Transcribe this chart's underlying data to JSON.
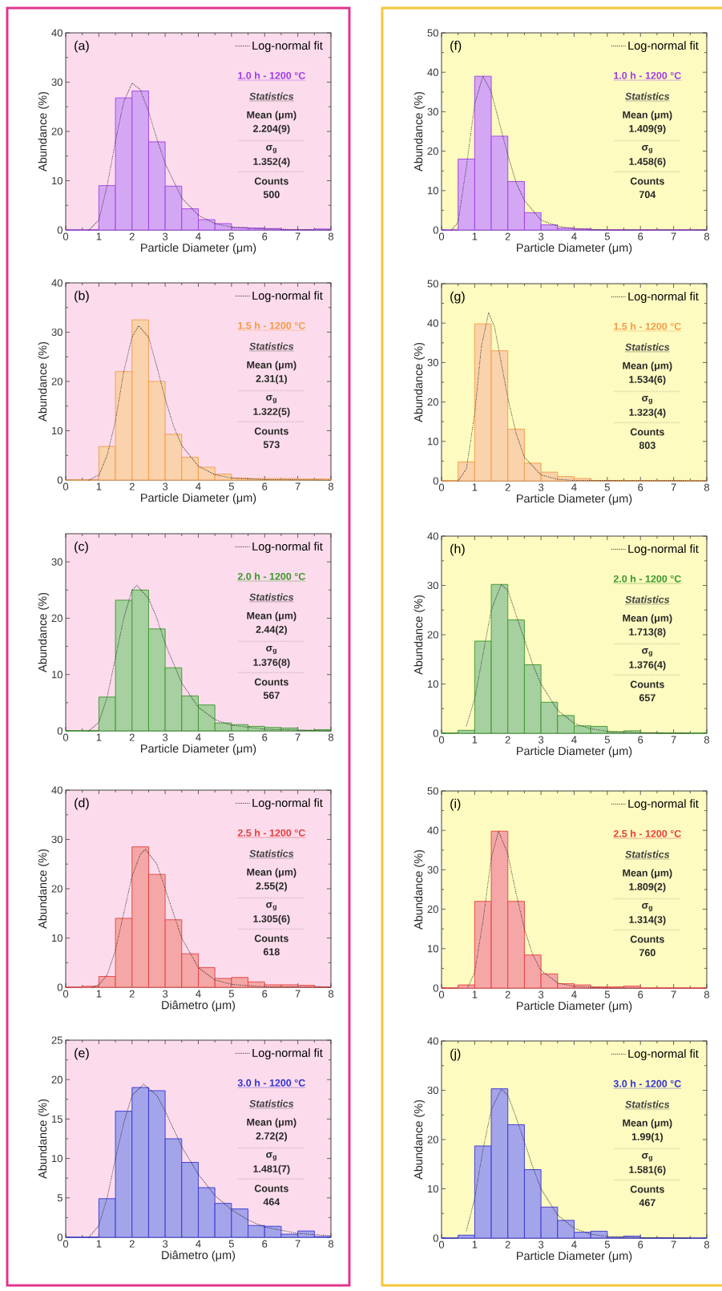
{
  "chart_data": [
    {
      "type": "histogram",
      "color": "#a03ce6",
      "xlabel": "Particle Diameter (μm)",
      "ylabel": "Abundance (%)",
      "xlim": [
        0,
        8
      ],
      "xticks": [
        0,
        1,
        2,
        3,
        4,
        5,
        6,
        7,
        8
      ],
      "ylim": [
        0,
        40
      ],
      "yticks": [
        0,
        10,
        20,
        30,
        40
      ],
      "legend": "top right",
      "bins": [
        0,
        0.5,
        1,
        1.5,
        2,
        2.5,
        3,
        3.5,
        4,
        4.5,
        5,
        5.5,
        6,
        6.5,
        7,
        7.5,
        8
      ],
      "values": [
        0,
        0,
        9,
        26.8,
        28.2,
        17.9,
        8.9,
        4.3,
        2.1,
        1.3,
        0.5,
        0.4,
        0.3,
        0,
        0,
        0.2
      ],
      "series": [
        {
          "name": "Log-normal fit",
          "type": "line",
          "color": "#222222",
          "line_style": "dotted",
          "x": [
            0.7,
            1.0,
            1.25,
            1.5,
            1.75,
            2.0,
            2.25,
            2.5,
            2.75,
            3.0,
            3.5,
            4.0,
            4.5,
            5.0,
            6.0,
            8.0
          ],
          "values": [
            0,
            2,
            9,
            18,
            26,
            29.8,
            28.5,
            24,
            18.5,
            13.5,
            6.5,
            3,
            1.3,
            0.6,
            0.2,
            0
          ]
        }
      ],
      "annotations": [
        "(a)",
        "1.0 h - 1200 °C",
        "Statistics",
        "Mean (μm)",
        "2.204(9)",
        "σ$_{g}$",
        "1.352(4)",
        "Counts",
        "500"
      ]
    },
    {
      "type": "histogram",
      "color": "#f59a45",
      "xlabel": "Particle Diameter (μm)",
      "ylabel": "Abundance (%)",
      "xlim": [
        0,
        8
      ],
      "xticks": [
        0,
        1,
        2,
        3,
        4,
        5,
        6,
        7,
        8
      ],
      "ylim": [
        0,
        40
      ],
      "yticks": [
        0,
        10,
        20,
        30,
        40
      ],
      "legend": "top right",
      "bins": [
        0,
        0.5,
        1,
        1.5,
        2,
        2.5,
        3,
        3.5,
        4,
        4.5,
        5,
        5.5,
        6,
        6.5,
        7,
        7.5,
        8
      ],
      "values": [
        0,
        0,
        6.8,
        22,
        32.5,
        20,
        9.3,
        4.6,
        2.6,
        1.2,
        0.4,
        0.3,
        0.3,
        0.3,
        0.2,
        0.2
      ],
      "series": [
        {
          "name": "Log-normal fit",
          "type": "line",
          "color": "#222222",
          "line_style": "dotted",
          "x": [
            0.7,
            1.0,
            1.25,
            1.5,
            1.75,
            2.0,
            2.2,
            2.5,
            2.75,
            3.0,
            3.25,
            3.5,
            4.0,
            4.5,
            5.0,
            6.0,
            8.0
          ],
          "values": [
            0,
            1,
            5,
            12,
            22,
            29,
            31.3,
            29,
            23,
            16.5,
            11,
            7,
            2.8,
            1.1,
            0.4,
            0.1,
            0
          ]
        }
      ],
      "annotations": [
        "(b)",
        "1.5 h - 1200 °C",
        "Statistics",
        "Mean (μm)",
        "2.31(1)",
        "σ$_{g}$",
        "1.322(5)",
        "Counts",
        "573"
      ]
    },
    {
      "type": "histogram",
      "color": "#3a962a",
      "xlabel": "Particle Diameter (μm)",
      "ylabel": "Abundance (%)",
      "xlim": [
        0,
        8
      ],
      "xticks": [
        0,
        1,
        2,
        3,
        4,
        5,
        6,
        7,
        8
      ],
      "ylim": [
        0,
        35
      ],
      "yticks": [
        0,
        10,
        20,
        30
      ],
      "legend": "top right",
      "bins": [
        0,
        0.5,
        1,
        1.5,
        2,
        2.5,
        3,
        3.5,
        4,
        4.5,
        5,
        5.5,
        6,
        6.5,
        7,
        7.5,
        8
      ],
      "values": [
        0,
        0,
        6,
        23.2,
        25,
        18.1,
        11.2,
        6.2,
        4.6,
        1.4,
        1.1,
        0.8,
        0.6,
        0.5,
        0.1,
        0.2
      ],
      "series": [
        {
          "name": "Log-normal fit",
          "type": "line",
          "color": "#222222",
          "line_style": "dotted",
          "x": [
            0.7,
            1.0,
            1.25,
            1.5,
            1.75,
            2.0,
            2.15,
            2.5,
            2.75,
            3.0,
            3.5,
            4.0,
            4.5,
            5.0,
            6.0,
            8.0
          ],
          "values": [
            0,
            1.5,
            6,
            13,
            20,
            25,
            25.8,
            23.5,
            20,
            15.5,
            8.5,
            4.2,
            2,
            1,
            0.3,
            0
          ]
        }
      ],
      "annotations": [
        "(c)",
        "2.0 h - 1200 °C",
        "Statistics",
        "Mean (μm)",
        "2.44(2)",
        "σ$_{g}$",
        "1.376(8)",
        "Counts",
        "567"
      ]
    },
    {
      "type": "histogram",
      "color": "#e83c3c",
      "xlabel": "Diâmetro (μm)",
      "ylabel": "Abundance (%)",
      "xlim": [
        0,
        8
      ],
      "xticks": [
        0,
        1,
        2,
        3,
        4,
        5,
        6,
        7,
        8
      ],
      "ylim": [
        0,
        40
      ],
      "yticks": [
        0,
        10,
        20,
        30,
        40
      ],
      "legend": "top right",
      "bins": [
        0,
        0.5,
        1,
        1.5,
        2,
        2.5,
        3,
        3.5,
        4,
        4.5,
        5,
        5.5,
        6,
        6.5,
        7,
        7.5,
        8
      ],
      "values": [
        0,
        0.2,
        2.2,
        14,
        28.5,
        22.9,
        13.7,
        6.8,
        4,
        1.8,
        2,
        1.1,
        0.5,
        0.5,
        0.4,
        0.1
      ],
      "series": [
        {
          "name": "Log-normal fit",
          "type": "line",
          "color": "#222222",
          "line_style": "dotted",
          "x": [
            0.8,
            1.0,
            1.25,
            1.5,
            1.75,
            2.0,
            2.25,
            2.4,
            2.75,
            3.0,
            3.25,
            3.5,
            4.0,
            4.5,
            5.0,
            6.0,
            8.0
          ],
          "values": [
            0,
            0.5,
            2.5,
            7.5,
            15,
            22.5,
            27,
            28,
            25,
            20,
            15,
            10,
            4,
            1.5,
            0.6,
            0.1,
            0
          ]
        }
      ],
      "annotations": [
        "(d)",
        "2.5 h - 1200 °C",
        "Statistics",
        "Mean (μm)",
        "2.55(2)",
        "σ$_{g}$",
        "1.305(6)",
        "Counts",
        "618"
      ]
    },
    {
      "type": "histogram",
      "color": "#3434d2",
      "xlabel": "Diâmetro (μm)",
      "ylabel": "Abundance (%)",
      "xlim": [
        0,
        8
      ],
      "xticks": [
        0,
        1,
        2,
        3,
        4,
        5,
        6,
        7,
        8
      ],
      "ylim": [
        0,
        25
      ],
      "yticks": [
        0,
        5,
        10,
        15,
        20,
        25
      ],
      "legend": "top right",
      "bins": [
        0,
        0.5,
        1,
        1.5,
        2,
        2.5,
        3,
        3.5,
        4,
        4.5,
        5,
        5.5,
        6,
        6.5,
        7,
        7.5,
        8
      ],
      "values": [
        0,
        0,
        4.9,
        16,
        19,
        18.6,
        12.5,
        9.5,
        6.3,
        4.3,
        3.6,
        1.5,
        1.4,
        0.4,
        0.8,
        0.1
      ],
      "series": [
        {
          "name": "Log-normal fit",
          "type": "line",
          "color": "#222222",
          "line_style": "dotted",
          "x": [
            0.7,
            1.0,
            1.25,
            1.5,
            1.75,
            2.0,
            2.35,
            2.75,
            3.0,
            3.5,
            4.0,
            4.5,
            5.0,
            5.5,
            6.0,
            7.0,
            8.0
          ],
          "values": [
            0,
            1.5,
            5,
            10,
            14.5,
            18,
            19.4,
            18,
            16,
            11.5,
            8,
            5.3,
            3.5,
            2.2,
            1.3,
            0.5,
            0.2
          ]
        }
      ],
      "annotations": [
        "(e)",
        "3.0 h - 1200 °C",
        "Statistics",
        "Mean (μm)",
        "2.72(2)",
        "σ$_{g}$",
        "1.481(7)",
        "Counts",
        "464"
      ]
    },
    {
      "type": "histogram",
      "color": "#a03ce6",
      "xlabel": "Particle Diameter (μm)",
      "ylabel": "Abundance (%)",
      "xlim": [
        0,
        8
      ],
      "xticks": [
        0,
        1,
        2,
        3,
        4,
        5,
        6,
        7,
        8
      ],
      "ylim": [
        0,
        50
      ],
      "yticks": [
        0,
        10,
        20,
        30,
        40,
        50
      ],
      "legend": "top right",
      "bins": [
        0,
        0.5,
        1,
        1.5,
        2,
        2.5,
        3,
        3.5,
        4,
        4.5,
        5,
        5.5,
        6,
        6.5,
        7,
        7.5,
        8
      ],
      "values": [
        0,
        18,
        39,
        23.8,
        12.3,
        4.4,
        1.3,
        0.5,
        0.3,
        0,
        0,
        0,
        0,
        0,
        0,
        0
      ],
      "series": [
        {
          "name": "Log-normal fit",
          "type": "line",
          "color": "#222222",
          "line_style": "dotted",
          "x": [
            0.3,
            0.5,
            0.75,
            1.0,
            1.25,
            1.5,
            1.75,
            2.0,
            2.25,
            2.5,
            3.0,
            3.5,
            4.0,
            5.0,
            8.0
          ],
          "values": [
            0,
            2,
            16,
            32,
            39,
            35,
            27,
            19,
            12,
            7.5,
            2.5,
            1,
            0.3,
            0,
            0
          ]
        }
      ],
      "annotations": [
        "(f)",
        "1.0 h - 1200 °C",
        "Statistics",
        "Mean (μm)",
        "1.409(9)",
        "σ$_{g}$",
        "1.458(6)",
        "Counts",
        "704"
      ]
    },
    {
      "type": "histogram",
      "color": "#f59a45",
      "xlabel": "Particle Diameter (μm)",
      "ylabel": "Abundance (%)",
      "xlim": [
        0,
        8
      ],
      "xticks": [
        0,
        1,
        2,
        3,
        4,
        5,
        6,
        7,
        8
      ],
      "ylim": [
        0,
        50
      ],
      "yticks": [
        0,
        10,
        20,
        30,
        40,
        50
      ],
      "legend": "top right",
      "bins": [
        0,
        0.5,
        1,
        1.5,
        2,
        2.5,
        3,
        3.5,
        4,
        4.5,
        5,
        5.5,
        6,
        6.5,
        7,
        7.5,
        8
      ],
      "values": [
        0,
        4.8,
        39.8,
        33,
        13.1,
        4.5,
        2.2,
        1.1,
        0.6,
        0,
        0,
        0,
        0,
        0,
        0,
        0
      ],
      "series": [
        {
          "name": "Log-normal fit",
          "type": "line",
          "color": "#222222",
          "line_style": "dotted",
          "x": [
            0.5,
            0.75,
            1.0,
            1.2,
            1.42,
            1.6,
            1.8,
            2.0,
            2.25,
            2.5,
            3.0,
            3.5,
            4.0,
            8.0
          ],
          "values": [
            0,
            3,
            17,
            34,
            42.7,
            39,
            30,
            21,
            12,
            6,
            1.5,
            0.4,
            0.1,
            0
          ]
        }
      ],
      "annotations": [
        "(g)",
        "1.5 h - 1200 °C",
        "Statistics",
        "Mean (μm)",
        "1.534(6)",
        "σ$_{g}$",
        "1.323(4)",
        "Counts",
        "803"
      ]
    },
    {
      "type": "histogram",
      "color": "#3a962a",
      "xlabel": "Particle Diameter (μm)",
      "ylabel": "Abundance (%)",
      "xlim": [
        0,
        8
      ],
      "xticks": [
        0,
        1,
        2,
        3,
        4,
        5,
        6,
        7,
        8
      ],
      "ylim": [
        0,
        40
      ],
      "yticks": [
        0,
        10,
        20,
        30,
        40
      ],
      "legend": "top right",
      "bins": [
        0,
        0.5,
        1,
        1.5,
        2,
        2.5,
        3,
        3.5,
        4,
        4.5,
        5,
        5.5,
        6,
        6.5,
        7,
        7.5,
        8
      ],
      "values": [
        0,
        0.6,
        18.7,
        30.2,
        23,
        13.9,
        6.3,
        3.6,
        1.5,
        1.4,
        0.3,
        0.5,
        0.1,
        0,
        0,
        0
      ],
      "series": [
        {
          "name": "Log-normal fit",
          "type": "line",
          "color": "#222222",
          "line_style": "dotted",
          "x": [
            0.75,
            1.0,
            1.25,
            1.5,
            1.8,
            2.0,
            2.25,
            2.5,
            2.75,
            3.0,
            3.5,
            4.0,
            4.5,
            5.0,
            6.0,
            7.5
          ],
          "values": [
            1.5,
            7,
            16,
            25,
            30.2,
            29,
            24,
            19,
            14,
            10,
            4.7,
            2,
            0.9,
            0.4,
            0.1,
            0
          ]
        }
      ],
      "annotations": [
        "(h)",
        "2.0 h - 1200 °C",
        "Statistics",
        "Mean (μm)",
        "1.713(8)",
        "σ$_{g}$",
        "1.376(4)",
        "Counts",
        "657"
      ]
    },
    {
      "type": "histogram",
      "color": "#e83c3c",
      "xlabel": "Particle Diameter (μm)",
      "ylabel": "Abundance (%)",
      "xlim": [
        0,
        8
      ],
      "xticks": [
        0,
        1,
        2,
        3,
        4,
        5,
        6,
        7,
        8
      ],
      "ylim": [
        0,
        50
      ],
      "yticks": [
        0,
        10,
        20,
        30,
        40,
        50
      ],
      "legend": "top right",
      "bins": [
        0,
        0.5,
        1,
        1.5,
        2,
        2.5,
        3,
        3.5,
        4,
        4.5,
        5,
        5.5,
        6,
        6.5,
        7,
        7.5,
        8
      ],
      "values": [
        0,
        0.8,
        22,
        39.8,
        22,
        8.4,
        3.6,
        1.1,
        0.8,
        0.3,
        0.3,
        0.5,
        0,
        0,
        0,
        0
      ],
      "series": [
        {
          "name": "Log-normal fit",
          "type": "line",
          "color": "#222222",
          "line_style": "dotted",
          "x": [
            0.8,
            1.0,
            1.25,
            1.5,
            1.72,
            2.0,
            2.25,
            2.5,
            2.75,
            3.0,
            3.5,
            4.0,
            5.0,
            6.0
          ],
          "values": [
            0.3,
            4,
            17,
            33,
            39.8,
            34,
            24,
            15,
            8.5,
            4.5,
            1.3,
            0.4,
            0,
            0
          ]
        }
      ],
      "annotations": [
        "(i)",
        "2.5 h - 1200 °C",
        "Statistics",
        "Mean (μm)",
        "1.809(2)",
        "σ$_{g}$",
        "1.314(3)",
        "Counts",
        "760"
      ]
    },
    {
      "type": "histogram",
      "color": "#3434d2",
      "xlabel": "Particle Diameter (μm)",
      "ylabel": "Abundance (%)",
      "xlim": [
        0,
        8
      ],
      "xticks": [
        0,
        1,
        2,
        3,
        4,
        5,
        6,
        7,
        8
      ],
      "ylim": [
        0,
        40
      ],
      "yticks": [
        0,
        10,
        20,
        30,
        40
      ],
      "legend": "top right",
      "bins": [
        0,
        0.5,
        1,
        1.5,
        2,
        2.5,
        3,
        3.5,
        4,
        4.5,
        5,
        5.5,
        6,
        6.5,
        7,
        7.5,
        8
      ],
      "values": [
        0,
        0.6,
        18.7,
        30.3,
        23,
        13.9,
        6.3,
        3.6,
        1.2,
        1.4,
        0.2,
        0.4,
        0,
        0,
        0,
        0
      ],
      "series": [
        {
          "name": "Log-normal fit",
          "type": "line",
          "color": "#222222",
          "line_style": "dotted",
          "x": [
            0.75,
            1.0,
            1.25,
            1.5,
            1.8,
            2.0,
            2.25,
            2.5,
            2.75,
            3.0,
            3.5,
            4.0,
            4.5,
            5.0,
            6.0,
            7.5
          ],
          "values": [
            1.5,
            8,
            18,
            26,
            30.2,
            29,
            24.5,
            19.5,
            14.5,
            10,
            4.7,
            2,
            0.8,
            0.3,
            0.1,
            0
          ]
        }
      ],
      "annotations": [
        "(j)",
        "3.0 h - 1200 °C",
        "Statistics",
        "Mean (μm)",
        "1.99(1)",
        "σ$_{g}$",
        "1.581(6)",
        "Counts",
        "467"
      ]
    }
  ]
}
